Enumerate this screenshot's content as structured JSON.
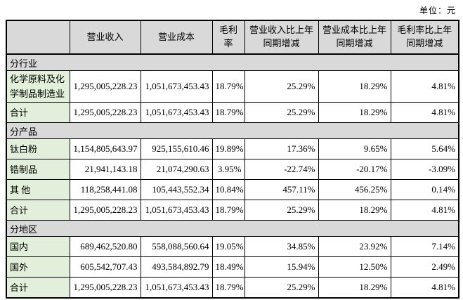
{
  "unit_label": "单位：元",
  "colors": {
    "header_bg": "#d9d9d9",
    "section_bg": "#d9d9d9",
    "label_bg": "#e2efda",
    "border": "#000000"
  },
  "table": {
    "columns": [
      {
        "label": ""
      },
      {
        "label": "营业收入"
      },
      {
        "label": "营业成本"
      },
      {
        "label": "毛利率"
      },
      {
        "label": "营业收入比上年同期增减"
      },
      {
        "label": "营业成本比上年同期增减"
      },
      {
        "label": "毛利率比上年同期增减"
      }
    ],
    "sections": [
      {
        "title": "分行业",
        "rows": [
          {
            "label": "化学原料及化学制品制造业",
            "values": [
              "1,295,005,228.23",
              "1,051,673,453.43",
              "18.79%",
              "25.29%",
              "18.29%",
              "4.81%"
            ]
          },
          {
            "label": "合计",
            "values": [
              "1,295,005,228.23",
              "1,051,673,453.43",
              "18.79%",
              "25.29%",
              "18.29%",
              "4.81%"
            ]
          }
        ]
      },
      {
        "title": "分产品",
        "rows": [
          {
            "label": "钛白粉",
            "values": [
              "1,154,805,643.97",
              "925,155,610.46",
              "19.89%",
              "17.36%",
              "9.65%",
              "5.64%"
            ]
          },
          {
            "label": "锆制品",
            "values": [
              "21,941,143.18",
              "21,074,290.63",
              "3.95%",
              "-22.74%",
              "-20.17%",
              "-3.09%"
            ]
          },
          {
            "label": "其 他",
            "values": [
              "118,258,441.08",
              "105,443,552.34",
              "10.84%",
              "457.11%",
              "456.25%",
              "0.14%"
            ]
          },
          {
            "label": "合计",
            "values": [
              "1,295,005,228.23",
              "1,051,673,453.43",
              "18.79%",
              "25.29%",
              "18.29%",
              "4.81%"
            ]
          }
        ]
      },
      {
        "title": "分地区",
        "rows": [
          {
            "label": "国内",
            "values": [
              "689,462,520.80",
              "558,088,560.64",
              "19.05%",
              "34.85%",
              "23.92%",
              "7.14%"
            ]
          },
          {
            "label": "国外",
            "values": [
              "605,542,707.43",
              "493,584,892.79",
              "18.49%",
              "15.94%",
              "12.50%",
              "2.49%"
            ]
          },
          {
            "label": "合计",
            "values": [
              "1,295,005,228.23",
              "1,051,673,453.43",
              "18.79%",
              "25.29%",
              "18.29%",
              "4.81%"
            ]
          }
        ]
      }
    ]
  }
}
